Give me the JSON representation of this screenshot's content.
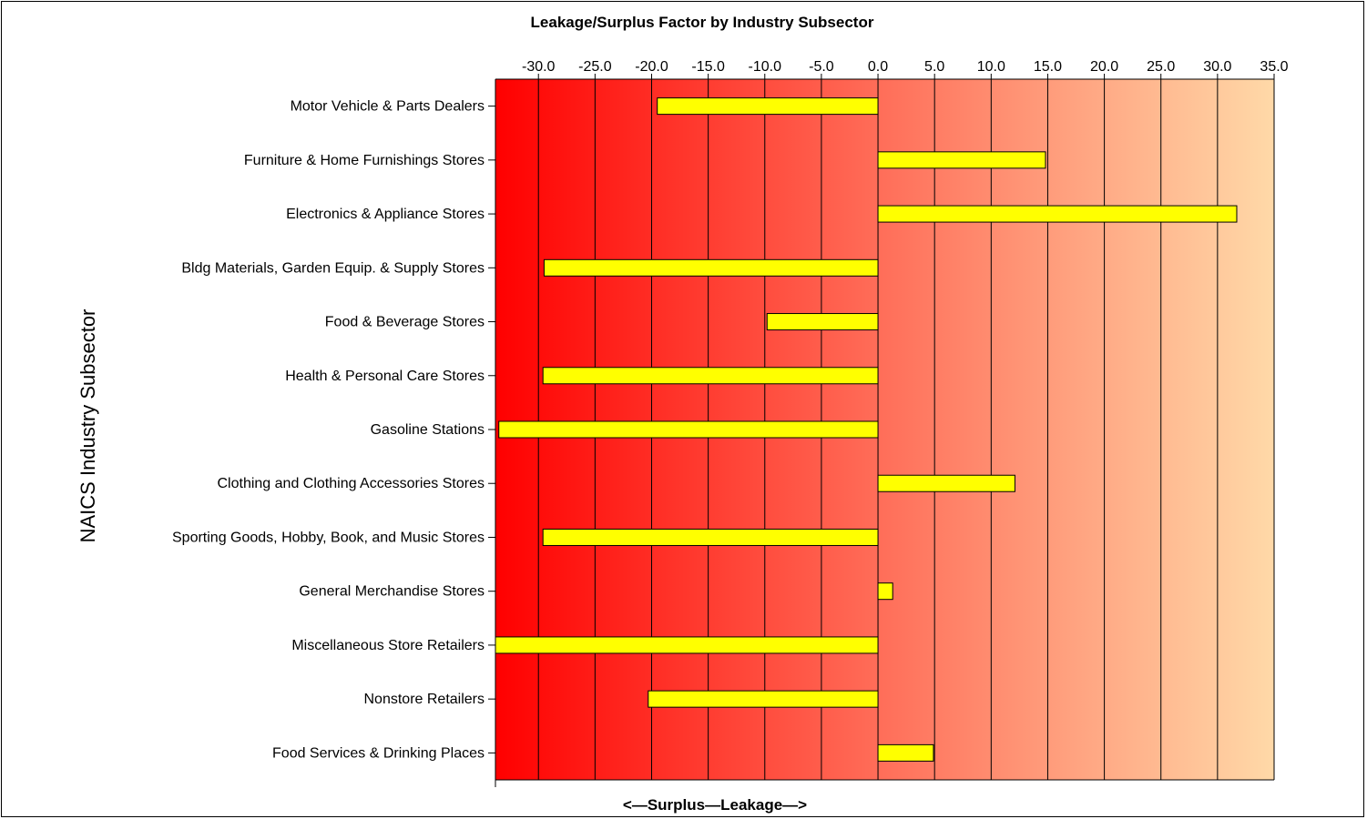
{
  "chart_data": {
    "type": "bar",
    "orientation": "horizontal",
    "title": "Leakage/Surplus Factor by Industry Subsector",
    "ylabel": "NAICS Industry Subsector",
    "xlabel": "<—Surplus—Leakage—>",
    "xlim": [
      -33.8,
      35
    ],
    "xticks": [
      "-30.0",
      "-25.0",
      "-20.0",
      "-15.0",
      "-10.0",
      "-5.0",
      "0.0",
      "5.0",
      "10.0",
      "15.0",
      "20.0",
      "25.0",
      "30.0",
      "35.0"
    ],
    "grid": true,
    "bar_color": "#ffff00",
    "categories": [
      "Motor Vehicle & Parts Dealers",
      "Furniture & Home Furnishings Stores",
      "Electronics & Appliance Stores",
      "Bldg Materials, Garden Equip. & Supply Stores",
      "Food & Beverage Stores",
      "Health & Personal Care Stores",
      "Gasoline Stations",
      "Clothing and Clothing Accessories Stores",
      "Sporting Goods, Hobby, Book, and Music Stores",
      "General Merchandise Stores",
      "Miscellaneous Store Retailers",
      "Nonstore Retailers",
      "Food Services & Drinking Places"
    ],
    "values": [
      -19.5,
      14.8,
      31.7,
      -29.5,
      -9.8,
      -29.6,
      -33.5,
      12.1,
      -29.6,
      1.3,
      -33.8,
      -20.3,
      4.9
    ]
  }
}
